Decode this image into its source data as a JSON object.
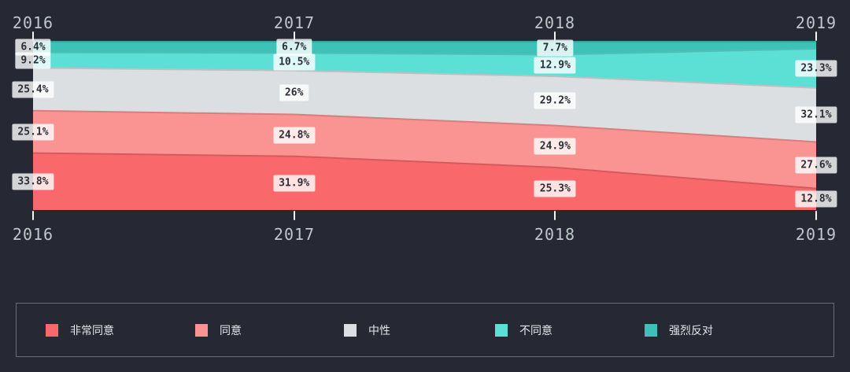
{
  "chart_data": {
    "type": "area",
    "subtype": "100-percent-stacked-stream",
    "title": "",
    "categories": [
      "2016",
      "2017",
      "2018",
      "2019"
    ],
    "series": [
      {
        "name": "非常同意",
        "slug": "strongly-agree",
        "color": "#f9696b",
        "values": [
          33.8,
          31.9,
          25.3,
          12.8
        ],
        "labels": [
          "33.8%",
          "31.9%",
          "25.3%",
          "12.8%"
        ]
      },
      {
        "name": "同意",
        "slug": "agree",
        "color": "#fa9492",
        "values": [
          25.1,
          24.8,
          24.9,
          27.6
        ],
        "labels": [
          "25.1%",
          "24.8%",
          "24.9%",
          "27.6%"
        ]
      },
      {
        "name": "中性",
        "slug": "neutral",
        "color": "#dcdfe1",
        "values": [
          25.4,
          26,
          29.2,
          32.1
        ],
        "labels": [
          "25.4%",
          "26%",
          "29.2%",
          "32.1%"
        ]
      },
      {
        "name": "不同意",
        "slug": "disagree",
        "color": "#5cdfd4",
        "values": [
          9.2,
          10.5,
          12.9,
          23.3
        ],
        "labels": [
          "9.2%",
          "10.5%",
          "12.9%",
          "23.3%"
        ]
      },
      {
        "name": "强烈反对",
        "slug": "strongly-oppose",
        "color": "#3ec1b6",
        "values": [
          6.4,
          6.7,
          7.7,
          4.2
        ],
        "labels": [
          "6.4%",
          "6.7%",
          "7.7%",
          ""
        ]
      }
    ],
    "stack_order_top_to_bottom": [
      "强烈反对",
      "不同意",
      "中性",
      "同意",
      "非常同意"
    ],
    "x_axis": {
      "top_labels": [
        "2016",
        "2017",
        "2018",
        "2019"
      ],
      "bottom_labels": [
        "2016",
        "2017",
        "2018",
        "2019"
      ]
    },
    "y_axis": {
      "shown": false,
      "range_percent": [
        0,
        100
      ]
    },
    "grid": false,
    "legend": {
      "position": "bottom",
      "entries": [
        "非常同意",
        "同意",
        "中性",
        "不同意",
        "强烈反对"
      ]
    }
  },
  "colors": {
    "background": "#262833",
    "axis_label": "#c0c6cd",
    "tick": "#f2f4f5",
    "value_label_bg": "rgba(255,255,255,0.8)",
    "value_label_text": "#2b2e36",
    "legend_border": "#6b6e78",
    "legend_text": "#e2e5e9"
  }
}
